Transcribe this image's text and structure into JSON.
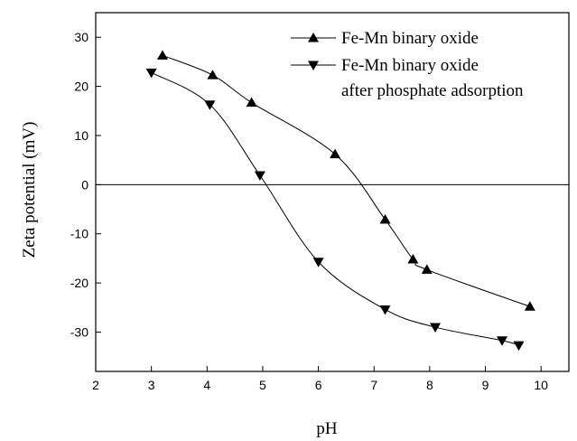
{
  "chart_data": {
    "type": "line",
    "xlabel": "pH",
    "ylabel": "Zeta potential (mV)",
    "xlim": [
      2,
      10.5
    ],
    "ylim": [
      -38,
      35
    ],
    "xticks": [
      2,
      3,
      4,
      5,
      6,
      7,
      8,
      9,
      10
    ],
    "yticks": [
      -30,
      -20,
      -10,
      0,
      10,
      20,
      30
    ],
    "grid": false,
    "reference_line_y": 0,
    "legend_position": "top-right",
    "series": [
      {
        "name": "Fe-Mn binary oxide",
        "marker": "triangle-up",
        "x": [
          3.2,
          4.1,
          4.8,
          6.3,
          7.2,
          7.7,
          7.95,
          9.8
        ],
        "y": [
          26.3,
          22.3,
          16.7,
          6.2,
          -7.1,
          -15.2,
          -17.3,
          -24.8
        ]
      },
      {
        "name": "Fe-Mn binary oxide\nafter phosphate adsorption",
        "legend_lines": [
          "Fe-Mn binary oxide",
          "after phosphate adsorption"
        ],
        "marker": "triangle-down",
        "x": [
          3.0,
          4.05,
          4.95,
          6.0,
          7.2,
          8.1,
          9.3,
          9.6
        ],
        "y": [
          22.8,
          16.3,
          1.9,
          -15.7,
          -25.4,
          -29.0,
          -31.7,
          -32.7
        ]
      }
    ]
  }
}
